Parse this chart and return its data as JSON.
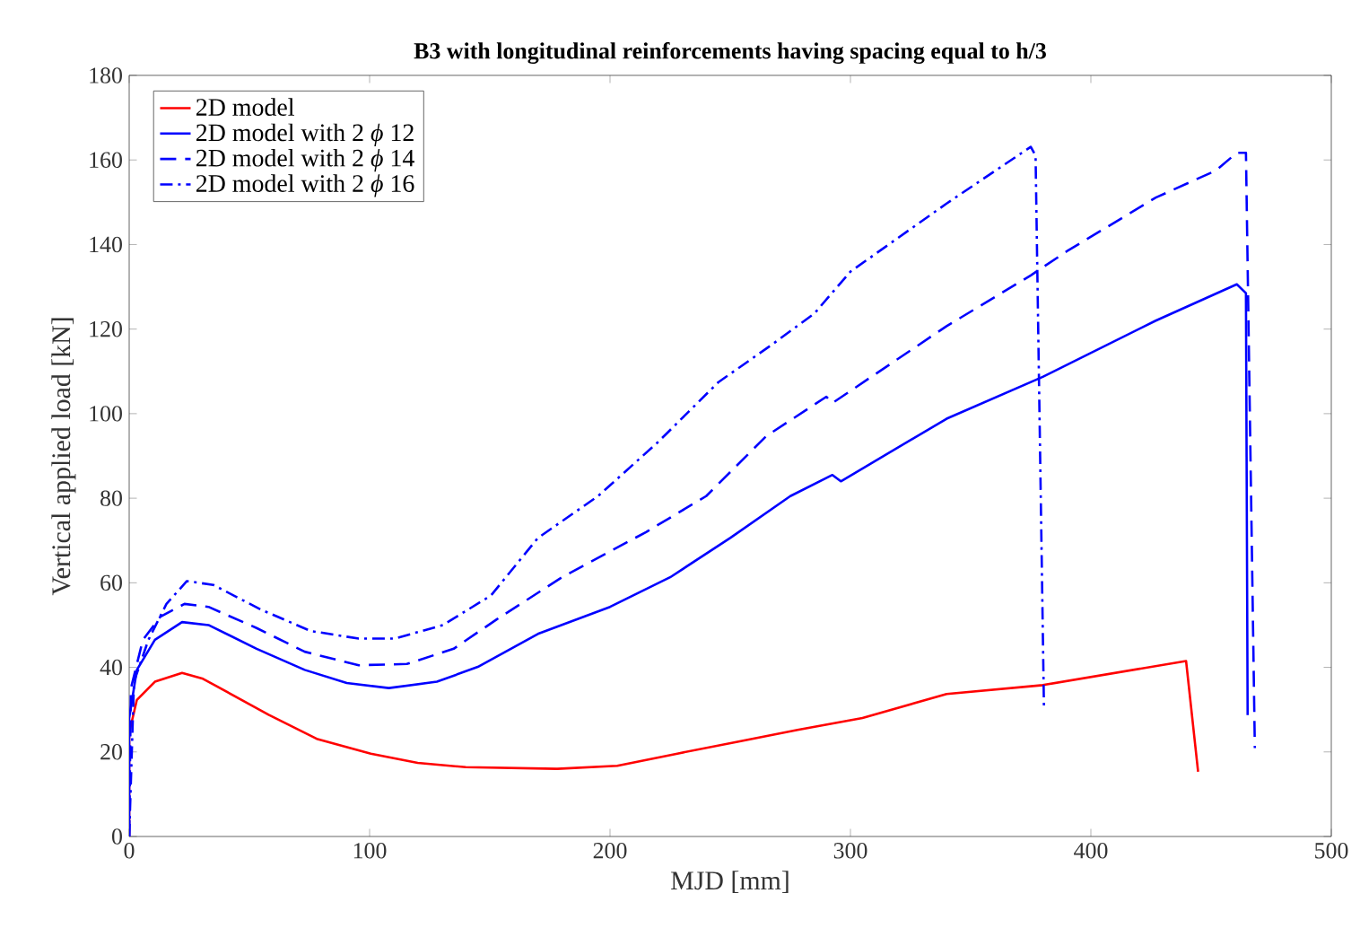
{
  "chart_data": {
    "type": "line",
    "title": "B3 with longitudinal reinforcements having spacing equal to h/3",
    "xlabel": "MJD [mm]",
    "ylabel": "Vertical applied load [kN]",
    "xlim": [
      0,
      500
    ],
    "xticks": [
      0,
      100,
      200,
      300,
      400,
      500
    ],
    "ylim": [
      0,
      180
    ],
    "yticks": [
      0,
      20,
      40,
      60,
      80,
      100,
      120,
      140,
      160,
      180
    ],
    "grid": false,
    "legend": "top left",
    "marker": "none",
    "series": [
      {
        "name": "2D model",
        "color": "#ff0000",
        "line_style": "solid",
        "x": [
          0,
          0,
          3.2,
          10.7,
          22,
          30.7,
          58,
          78,
          100.5,
          120,
          140,
          178,
          203,
          228,
          253,
          278,
          305,
          340,
          380,
          439.6,
          444.6
        ],
        "values": [
          0,
          24.5,
          32.3,
          36.6,
          38.7,
          37.3,
          28.8,
          23.1,
          19.6,
          17.4,
          16.4,
          16.0,
          16.7,
          19.6,
          22.4,
          25.2,
          28,
          33.7,
          35.8,
          41.5,
          15.3
        ]
      },
      {
        "name": "2D model with 2 *ϕ* 12",
        "color": "#0000ff",
        "line_style": "solid",
        "x": [
          0,
          0,
          3.2,
          10.7,
          22,
          33,
          53,
          73,
          90.5,
          108,
          128,
          145,
          170,
          200,
          225,
          250,
          275,
          292.5,
          296,
          340,
          380,
          427,
          460.7,
          464.5,
          465.2
        ],
        "values": [
          0,
          28,
          39.4,
          46.5,
          50.7,
          50,
          44.4,
          39.4,
          36.3,
          35.1,
          36.6,
          40.1,
          47.9,
          54.3,
          61.3,
          70.6,
          80.5,
          85.5,
          84,
          98.8,
          108.7,
          122,
          130.6,
          128.5,
          28.7
        ]
      },
      {
        "name": "2D model with 2 *ϕ* 14",
        "color": "#0000ff",
        "line_style": "dashed",
        "x": [
          0,
          0.7,
          5.7,
          13,
          23,
          33,
          53,
          73,
          95.5,
          115.5,
          135,
          153,
          180,
          215,
          240,
          265,
          290,
          292.5,
          340,
          375,
          390,
          427,
          452,
          460.7,
          464.5,
          468.2
        ],
        "values": [
          0,
          35,
          46.5,
          52,
          55,
          54.3,
          49.3,
          43.7,
          40.5,
          40.8,
          44.4,
          51.4,
          61.3,
          72,
          80.5,
          94.7,
          104,
          102.5,
          120.7,
          132.7,
          138.4,
          151.1,
          157.5,
          161.7,
          161.7,
          20.9
        ]
      },
      {
        "name": "2D model with 2 *ϕ* 16",
        "color": "#0000ff",
        "line_style": "dashdot",
        "x": [
          0,
          2,
          8,
          15.5,
          24,
          35,
          55,
          75.5,
          95.5,
          110.5,
          130.5,
          150.5,
          170,
          195,
          220,
          245,
          268,
          285,
          300,
          340,
          375,
          377,
          380.5
        ],
        "values": [
          0,
          36.6,
          46.5,
          55,
          60.4,
          59.5,
          53.6,
          48.6,
          46.8,
          46.8,
          50,
          57,
          70.6,
          80.5,
          93.3,
          107.4,
          116.6,
          123.7,
          133.6,
          149.7,
          163.1,
          161,
          30.1
        ]
      }
    ]
  }
}
